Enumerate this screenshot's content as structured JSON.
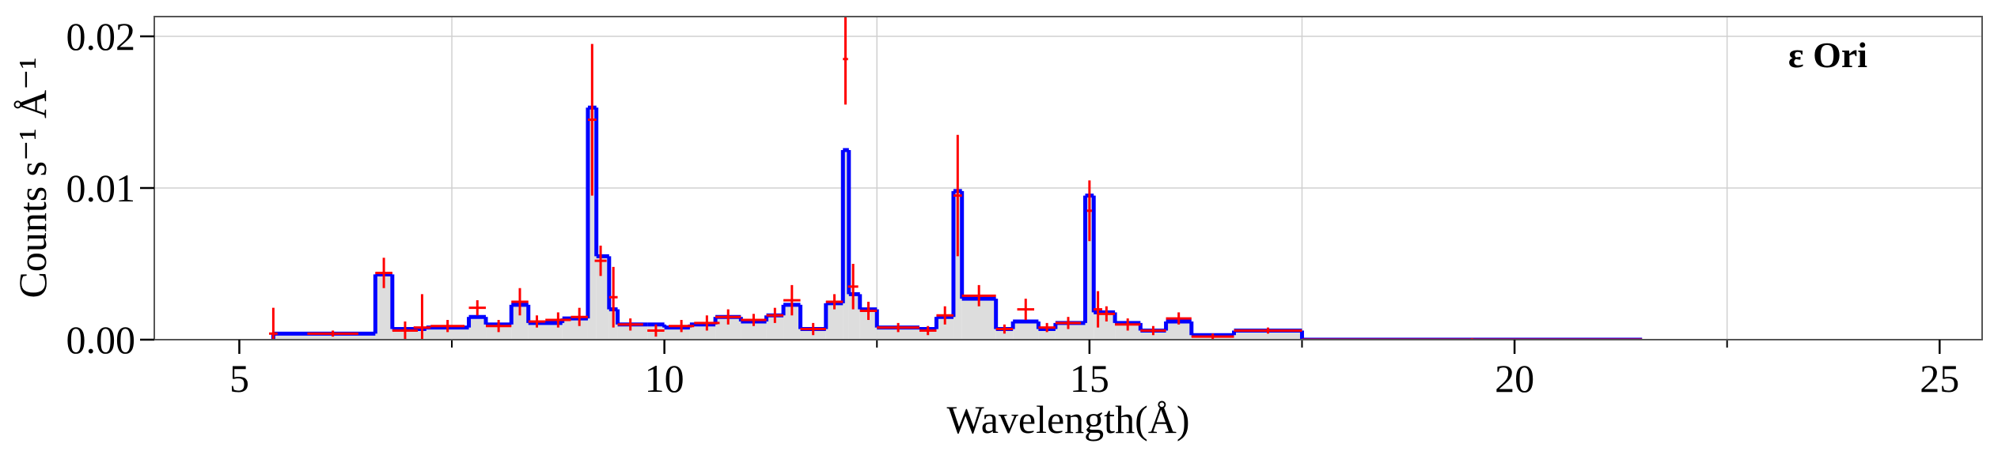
{
  "chart_data": {
    "type": "histogram",
    "annotation": "ε Ori",
    "xlabel": "Wavelength(Å)",
    "ylabel": "Counts s⁻¹ Å⁻¹",
    "bins": [
      5.4,
      6.6,
      6.8,
      7.2,
      7.7,
      7.9,
      8.2,
      8.4,
      8.8,
      9.1,
      9.2,
      9.35,
      9.45,
      9.8,
      10.0,
      10.3,
      10.6,
      10.9,
      11.2,
      11.4,
      11.6,
      11.9,
      12.1,
      12.17,
      12.3,
      12.5,
      13.0,
      13.2,
      13.4,
      13.5,
      13.9,
      14.1,
      14.4,
      14.6,
      14.95,
      15.05,
      15.3,
      15.6,
      15.9,
      16.2,
      16.7,
      17.5,
      21.5
    ],
    "values": [
      0.0004,
      0.0043,
      0.0007,
      0.0008,
      0.0015,
      0.001,
      0.0023,
      0.0011,
      0.0014,
      0.0153,
      0.0055,
      0.002,
      0.001,
      0.001,
      0.0008,
      0.001,
      0.0015,
      0.0012,
      0.0016,
      0.0023,
      0.0007,
      0.0024,
      0.0125,
      0.003,
      0.002,
      0.0008,
      0.0007,
      0.0015,
      0.0098,
      0.0027,
      0.0007,
      0.0012,
      0.0007,
      0.0011,
      0.0095,
      0.0018,
      0.0011,
      0.0006,
      0.0012,
      0.0003,
      0.0006,
      0.0
    ],
    "color": "#0000ff",
    "fill": "#dddddd",
    "points": {
      "color": "#ff0000",
      "x": [
        5.4,
        6.1,
        6.7,
        6.95,
        7.15,
        7.45,
        7.8,
        8.05,
        8.3,
        8.5,
        8.75,
        9.0,
        9.15,
        9.25,
        9.4,
        9.6,
        9.9,
        10.2,
        10.5,
        10.75,
        11.05,
        11.3,
        11.5,
        11.75,
        12.0,
        12.13,
        12.22,
        12.4,
        12.75,
        13.1,
        13.3,
        13.45,
        13.7,
        14.0,
        14.25,
        14.5,
        14.75,
        15.0,
        15.1,
        15.2,
        15.45,
        15.75,
        16.05,
        16.45,
        17.1,
        19.5
      ],
      "y": [
        0.0004,
        0.0004,
        0.0044,
        0.0006,
        0.0008,
        0.0009,
        0.0021,
        0.0009,
        0.0025,
        0.0012,
        0.0013,
        0.0015,
        0.0145,
        0.0052,
        0.0028,
        0.001,
        0.0006,
        0.0009,
        0.0011,
        0.0015,
        0.0013,
        0.0016,
        0.0026,
        0.0007,
        0.0025,
        0.0185,
        0.0035,
        0.0019,
        0.0008,
        0.0006,
        0.0016,
        0.0095,
        0.0029,
        0.0007,
        0.002,
        0.0008,
        0.0011,
        0.0085,
        0.002,
        0.0017,
        0.001,
        0.0006,
        0.0014,
        0.0002,
        0.0006,
        0.0
      ],
      "xerr": [
        0.05,
        0.3,
        0.1,
        0.15,
        0.1,
        0.2,
        0.1,
        0.15,
        0.1,
        0.1,
        0.15,
        0.1,
        0.05,
        0.07,
        0.05,
        0.15,
        0.1,
        0.15,
        0.15,
        0.15,
        0.15,
        0.1,
        0.1,
        0.15,
        0.1,
        0.03,
        0.06,
        0.1,
        0.25,
        0.1,
        0.1,
        0.05,
        0.2,
        0.1,
        0.1,
        0.1,
        0.15,
        0.03,
        0.05,
        0.1,
        0.15,
        0.15,
        0.15,
        0.25,
        0.4,
        2.0
      ],
      "yerr": [
        0.0017,
        0.0002,
        0.001,
        0.0006,
        0.0022,
        0.0004,
        0.0005,
        0.0004,
        0.0009,
        0.0004,
        0.0005,
        0.0006,
        0.005,
        0.001,
        0.002,
        0.0004,
        0.0004,
        0.0004,
        0.0005,
        0.0005,
        0.0004,
        0.0005,
        0.001,
        0.0004,
        0.0005,
        0.003,
        0.0015,
        0.0006,
        0.0003,
        0.0003,
        0.0006,
        0.004,
        0.0007,
        0.0003,
        0.0007,
        0.0003,
        0.0004,
        0.002,
        0.0012,
        0.0005,
        0.0004,
        0.0003,
        0.0004,
        0.0002,
        0.0002,
        0.0001
      ]
    },
    "xlim": [
      4,
      25.5
    ],
    "ylim": [
      0,
      0.0213
    ],
    "xticks": [
      5,
      10,
      15,
      20,
      25
    ],
    "yticks": [
      {
        "value": 0,
        "label": "0.00"
      },
      {
        "value": 0.01,
        "label": "0.01"
      },
      {
        "value": 0.02,
        "label": "0.02"
      }
    ],
    "xgrid": [
      7.5,
      12.5,
      17.5,
      22.5
    ],
    "grid": true
  }
}
